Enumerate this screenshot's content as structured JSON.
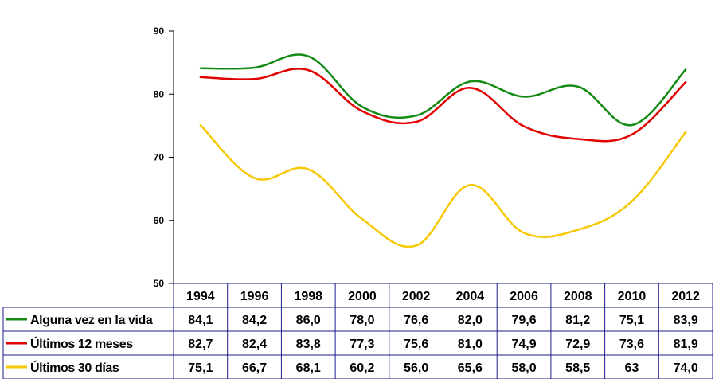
{
  "chart_data": {
    "type": "line",
    "title": "",
    "xlabel": "",
    "ylabel": "",
    "ylim": [
      50,
      90
    ],
    "yticks": [
      "50",
      "60",
      "70",
      "80",
      "90"
    ],
    "grid": false,
    "legend": "data-table-bottom",
    "categories": [
      "1994",
      "1996",
      "1998",
      "2000",
      "2002",
      "2004",
      "2006",
      "2008",
      "2010",
      "2012"
    ],
    "series": [
      {
        "name": "Alguna vez en la vida",
        "color": "#138a13",
        "values": [
          84.1,
          84.2,
          86.0,
          78.0,
          76.6,
          82.0,
          79.6,
          81.2,
          75.1,
          83.9
        ],
        "labels": [
          "84,1",
          "84,2",
          "86,0",
          "78,0",
          "76,6",
          "82,0",
          "79,6",
          "81,2",
          "75,1",
          "83,9"
        ]
      },
      {
        "name": "Últimos 12 meses",
        "color": "#e00000",
        "values": [
          82.7,
          82.4,
          83.8,
          77.3,
          75.6,
          81.0,
          74.9,
          72.9,
          73.6,
          81.9
        ],
        "labels": [
          "82,7",
          "82,4",
          "83,8",
          "77,3",
          "75,6",
          "81,0",
          "74,9",
          "72,9",
          "73,6",
          "81,9"
        ]
      },
      {
        "name": "Últimos 30 días",
        "color": "#f5c800",
        "values": [
          75.1,
          66.7,
          68.1,
          60.2,
          56.0,
          65.6,
          58.0,
          58.5,
          63.0,
          74.0
        ],
        "labels": [
          "75,1",
          "66,7",
          "68,1",
          "60,2",
          "56,0",
          "65,6",
          "58,0",
          "58,5",
          "63",
          "74,0"
        ]
      }
    ]
  }
}
